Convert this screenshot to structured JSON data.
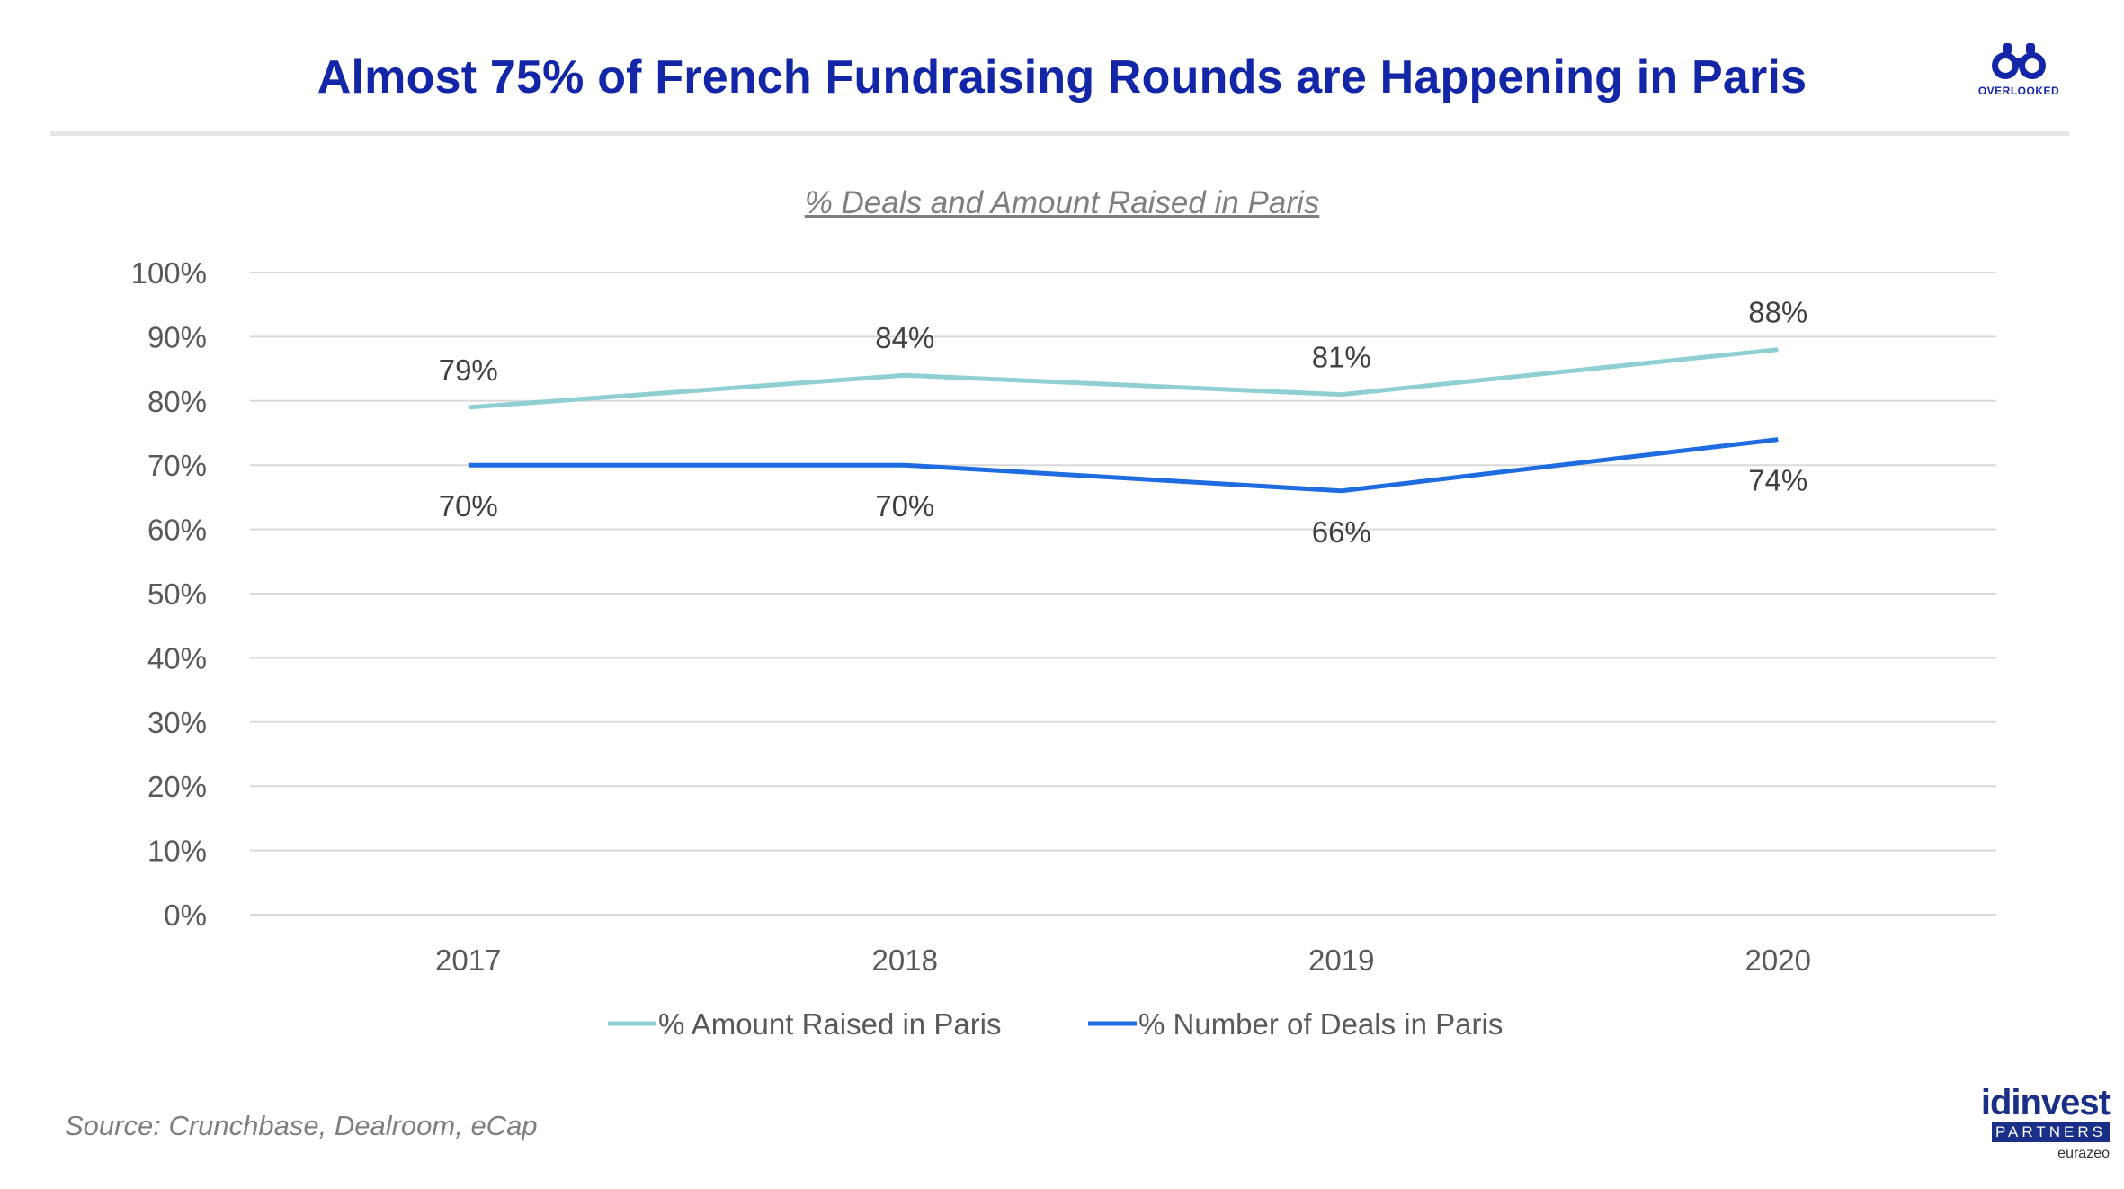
{
  "slide": {
    "title": "Almost 75% of French Fundraising Rounds are Happening in Paris",
    "source": "Source: Crunchbase, Dealroom, eCap"
  },
  "logos": {
    "top_right": {
      "icon": "binoculars-icon",
      "text": "OVERLOOKED",
      "color": "#1326a8"
    },
    "bottom_right": {
      "name": "idinvest",
      "sub": "PARTNERS",
      "sub2": "eurazeo",
      "color": "#1a2f86"
    }
  },
  "chart_data": {
    "type": "line",
    "title": "% Deals and Amount Raised in Paris",
    "xlabel": "",
    "ylabel": "",
    "categories": [
      "2017",
      "2018",
      "2019",
      "2020"
    ],
    "ylim": [
      0,
      100
    ],
    "yticks": [
      "0%",
      "10%",
      "20%",
      "30%",
      "40%",
      "50%",
      "60%",
      "70%",
      "80%",
      "90%",
      "100%"
    ],
    "grid": true,
    "legend": "bottom-center",
    "series": [
      {
        "name": "% Amount Raised in Paris",
        "color": "#8fcfd4",
        "values": [
          79,
          84,
          81,
          88
        ],
        "labels": [
          "79%",
          "84%",
          "81%",
          "88%"
        ],
        "label_position": "above"
      },
      {
        "name": "% Number of Deals in Paris",
        "color": "#1f6be0",
        "values": [
          70,
          70,
          66,
          74
        ],
        "labels": [
          "70%",
          "70%",
          "66%",
          "74%"
        ],
        "label_position": "below"
      }
    ]
  }
}
